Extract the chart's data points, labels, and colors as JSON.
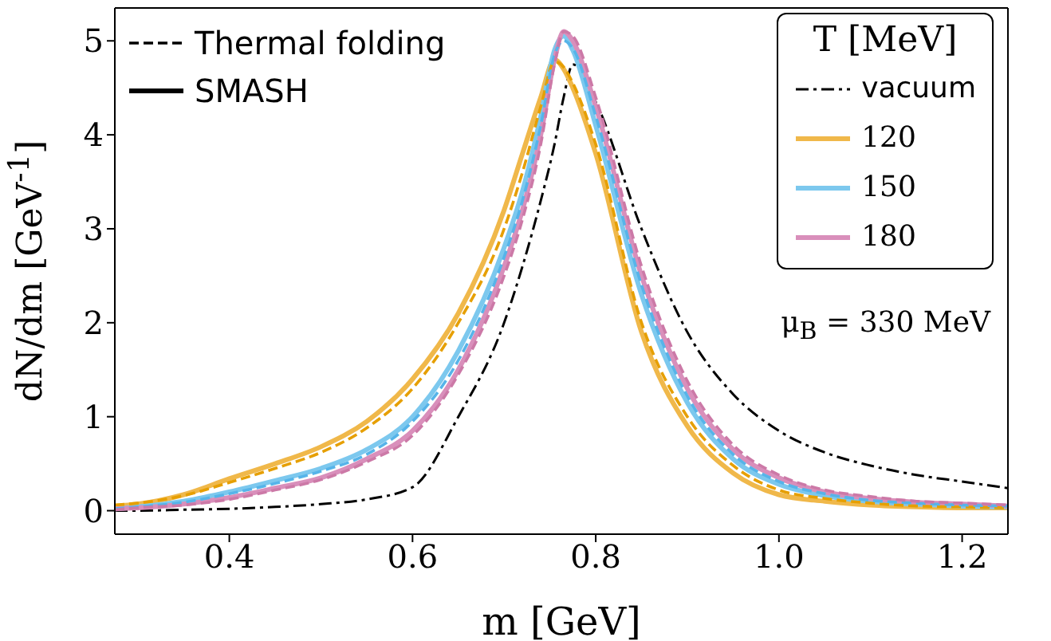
{
  "chart_data": {
    "type": "line",
    "xlabel": "m [GeV]",
    "ylabel": "dN/dm [GeV$^{-1}$]",
    "legend_title": "T [MeV]",
    "legend": "top right",
    "marker": "none",
    "xlim": [
      0.275,
      1.25
    ],
    "xticks": [
      {
        "value": 0.4,
        "label": "0.4"
      },
      {
        "value": 0.6,
        "label": "0.6"
      },
      {
        "value": 0.8,
        "label": "0.8"
      },
      {
        "value": 1,
        "label": "1.0"
      },
      {
        "value": 1.2,
        "label": "1.2"
      }
    ],
    "ylim": [
      -0.25,
      5.35
    ],
    "yticks": [
      0,
      1,
      2,
      3,
      4,
      5
    ],
    "x": [
      0.275,
      0.3,
      0.35,
      0.4,
      0.45,
      0.5,
      0.55,
      0.6,
      0.65,
      0.7,
      0.72,
      0.74,
      0.755,
      0.765,
      0.775,
      0.8,
      0.85,
      0.9,
      0.95,
      1.0,
      1.05,
      1.1,
      1.15,
      1.2,
      1.25
    ],
    "annotations": [
      "Thermal folding",
      "SMASH",
      "μ$_{B}$ = 330 MeV"
    ],
    "series": [
      {
        "name": "vacuum",
        "color": "#000000",
        "line_style": "dashdot",
        "values": [
          0.0,
          0.0,
          0.01,
          0.02,
          0.04,
          0.07,
          0.12,
          0.25,
          1.0,
          2.0,
          2.6,
          3.3,
          3.9,
          4.4,
          4.75,
          4.35,
          3.0,
          1.9,
          1.24,
          0.85,
          0.62,
          0.48,
          0.38,
          0.31,
          0.24
        ]
      },
      {
        "name": "120",
        "color": "#f0b84a",
        "line_style": "solid",
        "values": [
          0.05,
          0.07,
          0.17,
          0.34,
          0.5,
          0.68,
          0.95,
          1.4,
          2.1,
          3.2,
          3.8,
          4.4,
          4.8,
          4.7,
          4.5,
          3.8,
          1.9,
          0.9,
          0.4,
          0.17,
          0.1,
          0.06,
          0.04,
          0.03,
          0.03
        ]
      },
      {
        "name": "150",
        "color": "#7cc8ee",
        "line_style": "solid",
        "values": [
          0.02,
          0.04,
          0.1,
          0.2,
          0.32,
          0.45,
          0.65,
          1.0,
          1.7,
          2.8,
          3.4,
          4.2,
          4.9,
          5.05,
          4.9,
          4.1,
          2.3,
          1.15,
          0.55,
          0.28,
          0.16,
          0.1,
          0.07,
          0.05,
          0.04
        ]
      },
      {
        "name": "180",
        "color": "#d98fbb",
        "line_style": "solid",
        "values": [
          0.02,
          0.03,
          0.07,
          0.14,
          0.24,
          0.35,
          0.55,
          0.85,
          1.5,
          2.6,
          3.2,
          4.0,
          4.8,
          5.1,
          5.0,
          4.3,
          2.5,
          1.3,
          0.65,
          0.35,
          0.2,
          0.13,
          0.09,
          0.07,
          0.05
        ]
      },
      {
        "color": "#e69f00",
        "line_style": "dashed",
        "values": [
          0.06,
          0.08,
          0.16,
          0.3,
          0.45,
          0.62,
          0.88,
          1.3,
          2.0,
          3.0,
          3.6,
          4.3,
          4.78,
          4.72,
          4.55,
          3.9,
          2.0,
          1.0,
          0.48,
          0.22,
          0.13,
          0.08,
          0.05,
          0.04,
          0.03
        ]
      },
      {
        "color": "#56b4e9",
        "line_style": "dashed",
        "values": [
          0.02,
          0.04,
          0.09,
          0.18,
          0.29,
          0.42,
          0.6,
          0.95,
          1.6,
          2.7,
          3.3,
          4.1,
          4.85,
          5.0,
          4.92,
          4.2,
          2.4,
          1.22,
          0.6,
          0.31,
          0.18,
          0.11,
          0.08,
          0.06,
          0.05
        ]
      },
      {
        "color": "#cc79a7",
        "line_style": "dashed",
        "values": [
          0.01,
          0.03,
          0.06,
          0.12,
          0.22,
          0.33,
          0.52,
          0.8,
          1.45,
          2.5,
          3.1,
          3.9,
          4.75,
          5.1,
          5.05,
          4.4,
          2.6,
          1.38,
          0.7,
          0.38,
          0.22,
          0.15,
          0.1,
          0.08,
          0.06
        ]
      }
    ]
  }
}
